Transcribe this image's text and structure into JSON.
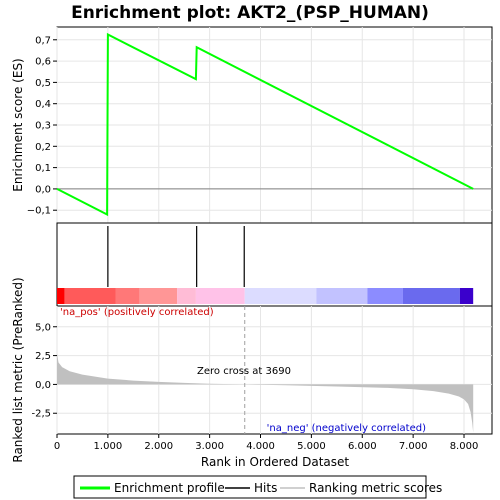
{
  "chart_data": {
    "type": "line",
    "title": "Enrichment plot: AKT2_(PSP_HUMAN)",
    "es_panel": {
      "ylabel": "Enrichment score (ES)",
      "ylim": [
        -0.16,
        0.76
      ],
      "yticks": [
        -0.1,
        0.0,
        0.1,
        0.2,
        0.3,
        0.4,
        0.5,
        0.6,
        0.7
      ],
      "ytick_labels": [
        "−0,1",
        "0,0",
        "0,1",
        "0,2",
        "0,3",
        "0,4",
        "0,5",
        "0,6",
        "0,7"
      ],
      "series": [
        {
          "name": "Enrichment profile",
          "color": "#00ff00",
          "x": [
            0,
            985,
            1000,
            2730,
            2745,
            8180
          ],
          "y": [
            0.0,
            -0.12,
            0.725,
            0.515,
            0.665,
            0.0
          ]
        }
      ]
    },
    "hits": [
      1000,
      2745,
      3680
    ],
    "gradient_bar": {
      "segments": [
        {
          "x0": 0,
          "x1": 150,
          "color": "#ff0000"
        },
        {
          "x0": 150,
          "x1": 1150,
          "color": "#ff5a5a"
        },
        {
          "x0": 1150,
          "x1": 1620,
          "color": "#ff7878"
        },
        {
          "x0": 1620,
          "x1": 2360,
          "color": "#ff9696"
        },
        {
          "x0": 2360,
          "x1": 2730,
          "color": "#ffbcd6"
        },
        {
          "x0": 2730,
          "x1": 3690,
          "color": "#ffc2e8"
        },
        {
          "x0": 3690,
          "x1": 5100,
          "color": "#dcdcff"
        },
        {
          "x0": 5100,
          "x1": 6100,
          "color": "#c2c2ff"
        },
        {
          "x0": 6100,
          "x1": 6800,
          "color": "#8c8cff"
        },
        {
          "x0": 6800,
          "x1": 7920,
          "color": "#6a6aee"
        },
        {
          "x0": 7920,
          "x1": 8180,
          "color": "#3a00cc"
        }
      ]
    },
    "metric_panel": {
      "ylabel": "Ranked list metric (PreRanked)",
      "ylim": [
        -4.3,
        6.8
      ],
      "yticks": [
        -2.5,
        0.0,
        2.5,
        5.0
      ],
      "ytick_labels": [
        "-2,5",
        "0,0",
        "2,5",
        "5,0"
      ],
      "area_color": "#c0c0c0",
      "profile_x": [
        0,
        30,
        100,
        250,
        500,
        1000,
        1500,
        2000,
        2500,
        3000,
        3690,
        4500,
        5500,
        6500,
        7000,
        7400,
        7700,
        7900,
        8000,
        8080,
        8130,
        8160,
        8180
      ],
      "profile_y": [
        2.7,
        1.9,
        1.5,
        1.15,
        0.85,
        0.5,
        0.33,
        0.22,
        0.13,
        0.06,
        0.0,
        -0.08,
        -0.18,
        -0.3,
        -0.42,
        -0.58,
        -0.8,
        -1.05,
        -1.3,
        -1.7,
        -2.4,
        -3.3,
        -4.2
      ],
      "zero_cross_label": "Zero cross at 3690",
      "zero_cross_x": 3690,
      "pos_label": "'na_pos' (positively correlated)",
      "neg_label": "'na_neg' (negatively correlated)",
      "pos_color": "#cc0000",
      "neg_color": "#0000cc"
    },
    "x_axis": {
      "xlabel": "Rank in Ordered Dataset",
      "xlim": [
        0,
        8550
      ],
      "xticks": [
        0,
        1000,
        2000,
        3000,
        4000,
        5000,
        6000,
        7000,
        8000
      ],
      "xtick_labels": [
        "0",
        "1.000",
        "2.000",
        "3.000",
        "4.000",
        "5.000",
        "6.000",
        "7.000",
        "8.000"
      ]
    },
    "legend": {
      "placement": "bottom",
      "items": [
        {
          "label": "Enrichment profile",
          "color": "#00ff00"
        },
        {
          "label": "Hits",
          "color": "#000000"
        },
        {
          "label": "Ranking metric scores",
          "color": "#c0c0c0"
        }
      ]
    }
  }
}
